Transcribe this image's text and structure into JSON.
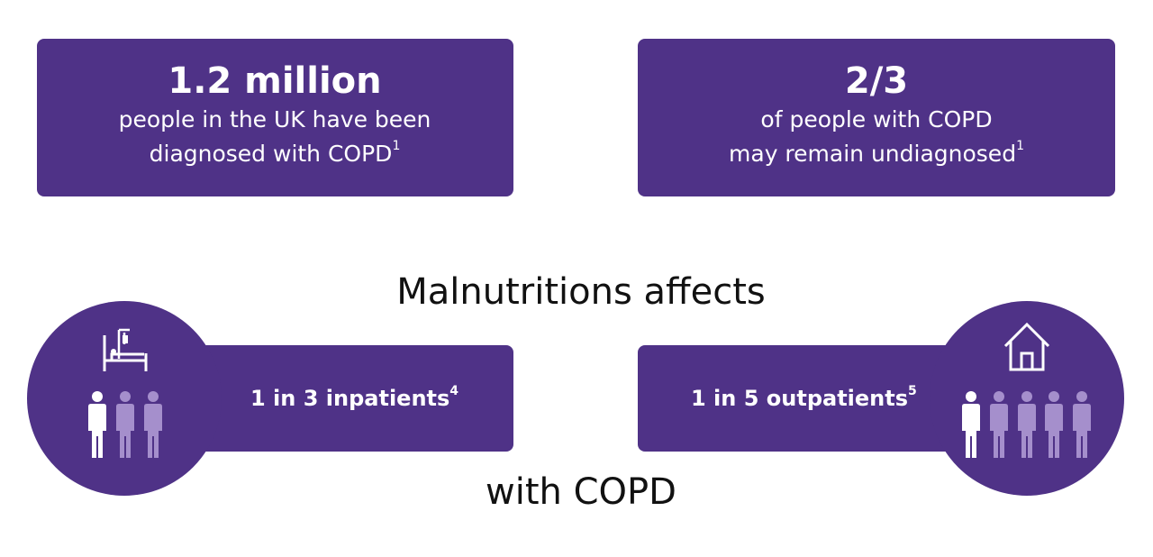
{
  "stats": [
    {
      "headline": "1.2 million",
      "lines": [
        "people in the UK have been",
        "diagnosed with COPD"
      ],
      "ref": "1"
    },
    {
      "headline": "2/3",
      "lines": [
        "of people with COPD",
        "may remain undiagnosed"
      ],
      "ref": "1"
    }
  ],
  "heading": "Malnutritions affects",
  "groups": [
    {
      "label": "1 in 3 inpatients",
      "ref": "4"
    },
    {
      "label": "1 in 5 outpatients",
      "ref": "5"
    }
  ],
  "footer": "with COPD"
}
